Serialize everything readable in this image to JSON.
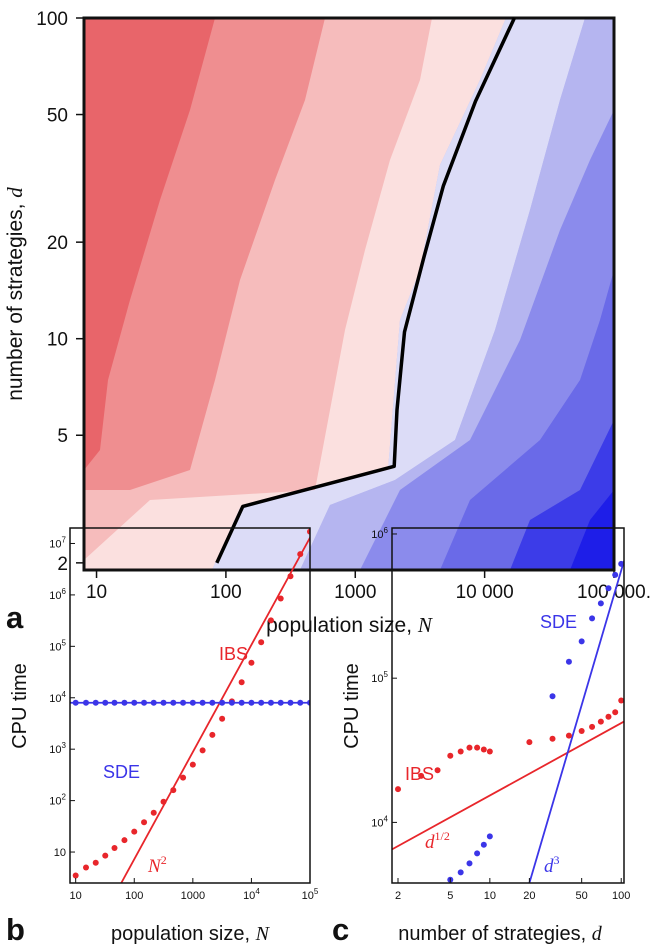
{
  "chart_data": [
    {
      "panel_label": "a",
      "type": "heatmap",
      "xlabel": "population size, ",
      "xlabel_var": "N",
      "ylabel": "number of strategies, ",
      "ylabel_var": "d",
      "x_scale": "log",
      "y_scale": "log",
      "xlim": [
        8,
        100000
      ],
      "ylim": [
        1.9,
        100
      ],
      "x_ticks": [
        10,
        100,
        1000,
        10000,
        100000
      ],
      "x_tick_labels": [
        "10",
        "100",
        "1000",
        "10 000",
        "100 000."
      ],
      "y_ticks": [
        2,
        5,
        10,
        20,
        50,
        100
      ],
      "y_tick_labels": [
        "2",
        "5",
        "10",
        "20",
        "50",
        "100"
      ],
      "boundary_line": [
        [
          85,
          2.0
        ],
        [
          135,
          3.0
        ],
        [
          2000,
          4.0
        ],
        [
          2100,
          6.0
        ],
        [
          2400,
          10.5
        ],
        [
          3400,
          18
        ],
        [
          4800,
          30
        ],
        [
          8500,
          55
        ],
        [
          17000,
          100
        ]
      ],
      "colors": {
        "red_dark": "#e8656a",
        "red_mid": "#ef8e90",
        "red_light": "#f6bcbc",
        "red_faint": "#fbe0df",
        "blue_faint": "#dcdcf7",
        "blue_light": "#b5b5f0",
        "blue_mid": "#8b8bec",
        "blue_dark": "#5a5ae6",
        "blue_deep": "#2a2ae8",
        "line": "#000000"
      }
    },
    {
      "panel_label": "b",
      "type": "scatter",
      "xlabel": "population size, ",
      "xlabel_var": "N",
      "ylabel": "CPU time",
      "x_scale": "log",
      "y_scale": "log",
      "xlim": [
        8,
        100000
      ],
      "ylim": [
        2.5,
        20000000
      ],
      "x_ticks": [
        10,
        100,
        1000,
        10000,
        100000
      ],
      "x_tick_labels": [
        "10",
        "100",
        "1000",
        "10^4",
        "10^5"
      ],
      "y_ticks": [
        10,
        100,
        1000,
        10000,
        100000,
        1000000,
        10000000
      ],
      "y_tick_labels": [
        "10",
        "10^2",
        "10^3",
        "10^4",
        "10^5",
        "10^6",
        "10^7"
      ],
      "series": [
        {
          "name": "IBS",
          "color": "#e8262b",
          "x": [
            10,
            15,
            22,
            32,
            46,
            68,
            100,
            147,
            215,
            316,
            464,
            681,
            1000,
            1468,
            2154,
            3162,
            4642,
            6813,
            10000,
            14678,
            21544,
            31623,
            46416,
            68129,
            100000
          ],
          "y": [
            3.5,
            5,
            6.2,
            8.5,
            12,
            17,
            25,
            38,
            58,
            95,
            160,
            280,
            500,
            950,
            1900,
            3900,
            8500,
            20000,
            48000,
            120000,
            320000,
            850000,
            2300000,
            6200000,
            17000000
          ]
        },
        {
          "name": "SDE",
          "color": "#3b35e8",
          "x": [
            10,
            15,
            22,
            32,
            46,
            68,
            100,
            147,
            215,
            316,
            464,
            681,
            1000,
            1468,
            2154,
            3162,
            4642,
            6813,
            10000,
            14678,
            21544,
            31623,
            46416,
            68129,
            100000
          ],
          "y": [
            8000,
            8000,
            8000,
            8000,
            8000,
            8000,
            8000,
            8000,
            8000,
            8000,
            8000,
            8000,
            8000,
            8000,
            8000,
            8000,
            8000,
            8000,
            8000,
            8000,
            8000,
            8000,
            8000,
            8000,
            8000
          ]
        }
      ],
      "fit_lines": [
        {
          "label": "N",
          "label_exp": "2",
          "color": "#e8262b",
          "from": [
            60,
            2.5
          ],
          "to": [
            100000,
            13000000
          ]
        },
        {
          "label": "",
          "color": "#3b35e8",
          "from": [
            8,
            8000
          ],
          "to": [
            100000,
            8000
          ]
        }
      ]
    },
    {
      "panel_label": "c",
      "type": "scatter",
      "xlabel": "number of strategies, ",
      "xlabel_var": "d",
      "ylabel": "CPU time",
      "x_scale": "log",
      "y_scale": "log",
      "xlim": [
        1.8,
        105
      ],
      "ylim": [
        3800,
        1100000
      ],
      "x_ticks": [
        2,
        5,
        10,
        20,
        50,
        100
      ],
      "x_tick_labels": [
        "2",
        "5",
        "10",
        "20",
        "50",
        "100"
      ],
      "y_ticks": [
        10000,
        100000,
        1000000
      ],
      "y_tick_labels": [
        "10^4",
        "10^5",
        "10^6"
      ],
      "series": [
        {
          "name": "IBS",
          "color": "#e8262b",
          "x": [
            2,
            3,
            4,
            5,
            6,
            7,
            8,
            9,
            10,
            20,
            30,
            40,
            50,
            60,
            70,
            80,
            90,
            100
          ],
          "y": [
            17000,
            21000,
            23000,
            29000,
            31000,
            33000,
            33000,
            32000,
            31000,
            36000,
            38000,
            40000,
            43000,
            46000,
            50000,
            54000,
            58000,
            70000
          ]
        },
        {
          "name": "SDE",
          "color": "#3b35e8",
          "x": [
            5,
            6,
            7,
            8,
            9,
            10,
            30,
            40,
            50,
            60,
            70,
            80,
            90,
            100
          ],
          "y": [
            4000,
            4500,
            5200,
            6100,
            7000,
            8000,
            75000,
            130000,
            180000,
            260000,
            330000,
            420000,
            520000,
            620000
          ]
        }
      ],
      "fit_lines": [
        {
          "label": "d",
          "label_exp": "1/2",
          "color": "#e8262b",
          "from": [
            1.8,
            6500
          ],
          "to": [
            105,
            50000
          ]
        },
        {
          "label": "d",
          "label_exp": "3",
          "color": "#3b35e8",
          "from": [
            20,
            3800
          ],
          "to": [
            105,
            650000
          ]
        }
      ]
    }
  ]
}
